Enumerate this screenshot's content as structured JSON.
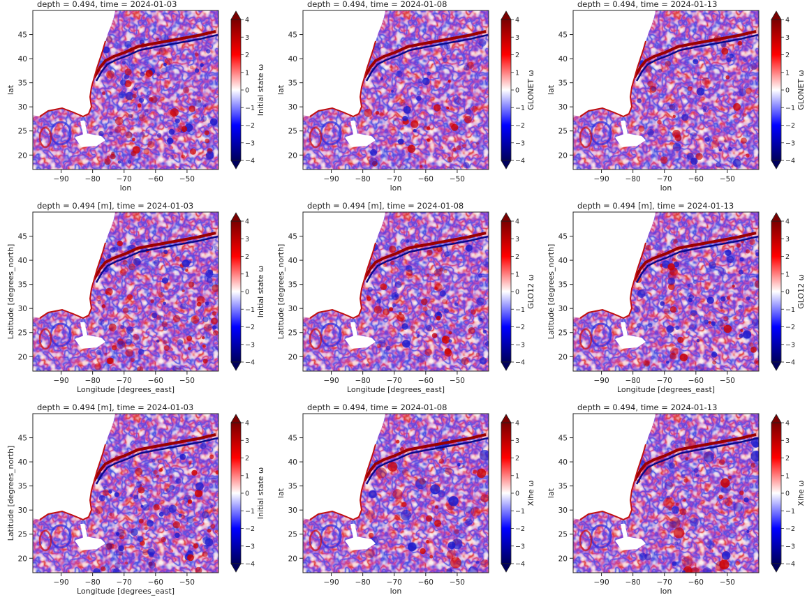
{
  "figure": {
    "rows": 3,
    "cols": 3,
    "colorbar_ticks": [
      "4",
      "3",
      "2",
      "1",
      "0",
      "−1",
      "−2",
      "−3",
      "−4"
    ],
    "x_ticks": [
      "−90",
      "−80",
      "−70",
      "−60",
      "−50"
    ],
    "y_ticks": [
      "45",
      "40",
      "35",
      "30",
      "25",
      "20"
    ],
    "colormap": {
      "low": "#00005c",
      "mid": "#ffffff",
      "high": "#7a0000"
    }
  },
  "chart_data": [
    {
      "type": "heatmap",
      "title": "depth = 0.494, time = 2024-01-03",
      "xlabel": "lon",
      "ylabel": "lat",
      "colorbar_label": "Initial state ω",
      "x_ticks": [
        -90,
        -80,
        -70,
        -60,
        -50
      ],
      "y_ticks": [
        20,
        25,
        30,
        35,
        40,
        45
      ],
      "xlim": [
        -99,
        -40
      ],
      "ylim": [
        17,
        50
      ],
      "vlim": [
        -4,
        4
      ],
      "colormap": "seismic"
    },
    {
      "type": "heatmap",
      "title": "depth = 0.494, time = 2024-01-08",
      "xlabel": "lon",
      "ylabel": "lat",
      "colorbar_label": "GLONET ω",
      "x_ticks": [
        -90,
        -80,
        -70,
        -60,
        -50
      ],
      "y_ticks": [
        20,
        25,
        30,
        35,
        40,
        45
      ],
      "xlim": [
        -99,
        -40
      ],
      "ylim": [
        17,
        50
      ],
      "vlim": [
        -4,
        4
      ],
      "colormap": "seismic"
    },
    {
      "type": "heatmap",
      "title": "depth = 0.494, time = 2024-01-13",
      "xlabel": "lon",
      "ylabel": "lat",
      "colorbar_label": "GLONET ω",
      "x_ticks": [
        -90,
        -80,
        -70,
        -60,
        -50
      ],
      "y_ticks": [
        20,
        25,
        30,
        35,
        40,
        45
      ],
      "xlim": [
        -99,
        -40
      ],
      "ylim": [
        17,
        50
      ],
      "vlim": [
        -4,
        4
      ],
      "colormap": "seismic"
    },
    {
      "type": "heatmap",
      "title": "depth = 0.494 [m], time = 2024-01-03",
      "xlabel": "Longitude [degrees_east]",
      "ylabel": "Latitude [degrees_north]",
      "colorbar_label": "Initial state ω",
      "x_ticks": [
        -90,
        -80,
        -70,
        -60,
        -50
      ],
      "y_ticks": [
        20,
        25,
        30,
        35,
        40,
        45
      ],
      "xlim": [
        -99,
        -40
      ],
      "ylim": [
        17,
        50
      ],
      "vlim": [
        -4,
        4
      ],
      "colormap": "seismic"
    },
    {
      "type": "heatmap",
      "title": "depth = 0.494 [m], time = 2024-01-08",
      "xlabel": "Longitude [degrees_east]",
      "ylabel": "Latitude [degrees_north]",
      "colorbar_label": "GLO12 ω",
      "x_ticks": [
        -90,
        -80,
        -70,
        -60,
        -50
      ],
      "y_ticks": [
        20,
        25,
        30,
        35,
        40,
        45
      ],
      "xlim": [
        -99,
        -40
      ],
      "ylim": [
        17,
        50
      ],
      "vlim": [
        -4,
        4
      ],
      "colormap": "seismic"
    },
    {
      "type": "heatmap",
      "title": "depth = 0.494 [m], time = 2024-01-13",
      "xlabel": "Longitude [degrees_east]",
      "ylabel": "Latitude [degrees_north]",
      "colorbar_label": "GLO12 ω",
      "x_ticks": [
        -90,
        -80,
        -70,
        -60,
        -50
      ],
      "y_ticks": [
        20,
        25,
        30,
        35,
        40,
        45
      ],
      "xlim": [
        -99,
        -40
      ],
      "ylim": [
        17,
        50
      ],
      "vlim": [
        -4,
        4
      ],
      "colormap": "seismic"
    },
    {
      "type": "heatmap",
      "title": "depth = 0.494 [m], time = 2024-01-03",
      "xlabel": "Longitude [degrees_east]",
      "ylabel": "Latitude [degrees_north]",
      "colorbar_label": "Initial state ω",
      "x_ticks": [
        -90,
        -80,
        -70,
        -60,
        -50
      ],
      "y_ticks": [
        20,
        25,
        30,
        35,
        40,
        45
      ],
      "xlim": [
        -99,
        -40
      ],
      "ylim": [
        17,
        50
      ],
      "vlim": [
        -4,
        4
      ],
      "colormap": "seismic"
    },
    {
      "type": "heatmap",
      "title": "depth = 0.494, time = 2024-01-08",
      "xlabel": "lon",
      "ylabel": "lat",
      "colorbar_label": "Xihe ω",
      "x_ticks": [
        -90,
        -80,
        -70,
        -60,
        -50
      ],
      "y_ticks": [
        20,
        25,
        30,
        35,
        40,
        45
      ],
      "xlim": [
        -99,
        -40
      ],
      "ylim": [
        17,
        50
      ],
      "vlim": [
        -4,
        4
      ],
      "colormap": "seismic"
    },
    {
      "type": "heatmap",
      "title": "depth = 0.494, time = 2024-01-13",
      "xlabel": "lon",
      "ylabel": "lat",
      "colorbar_label": "Xihe ω",
      "x_ticks": [
        -90,
        -80,
        -70,
        -60,
        -50
      ],
      "y_ticks": [
        20,
        25,
        30,
        35,
        40,
        45
      ],
      "xlim": [
        -99,
        -40
      ],
      "ylim": [
        17,
        50
      ],
      "vlim": [
        -4,
        4
      ],
      "colormap": "seismic"
    }
  ]
}
